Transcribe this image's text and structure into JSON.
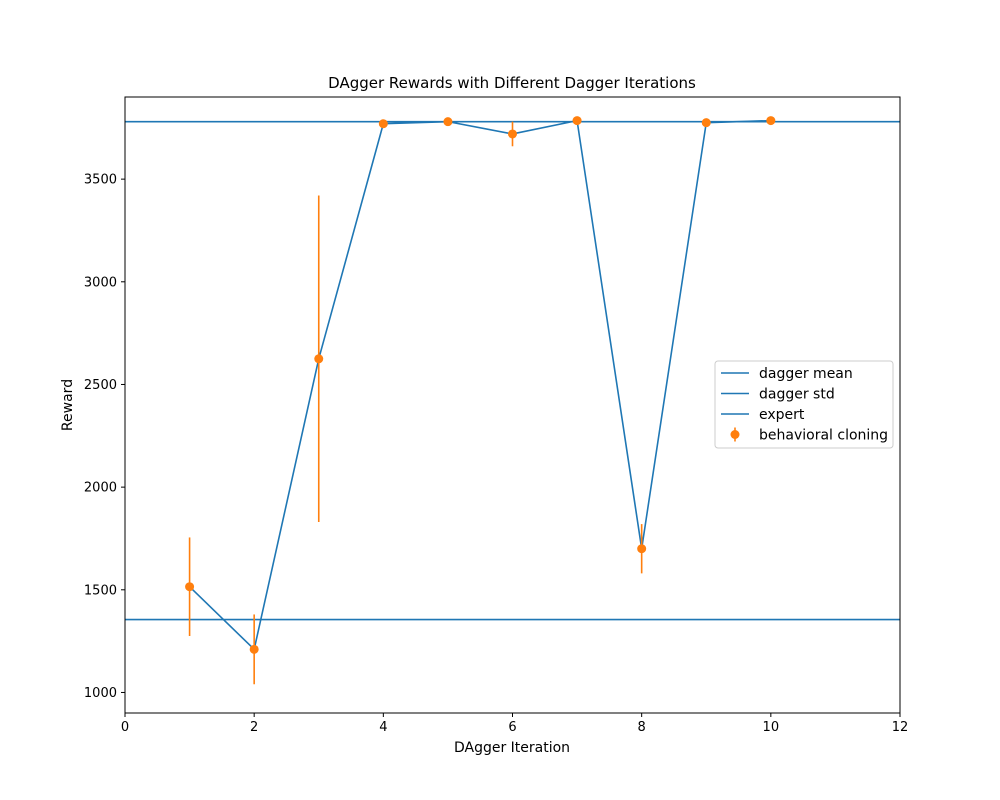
{
  "chart_data": {
    "type": "line",
    "title": "DAgger Rewards with Different Dagger Iterations",
    "xlabel": "DAgger Iteration",
    "ylabel": "Reward",
    "xlim": [
      0,
      12
    ],
    "ylim": [
      900,
      3900
    ],
    "xticks": [
      0,
      2,
      4,
      6,
      8,
      10,
      12
    ],
    "yticks": [
      1000,
      1500,
      2000,
      2500,
      3000,
      3500
    ],
    "grid": false,
    "legend_position": "center-right",
    "series": [
      {
        "name": "dagger mean",
        "kind": "line",
        "color": "#1f77b4",
        "x": [
          1,
          2,
          3,
          4,
          5,
          6,
          7,
          8,
          9,
          10
        ],
        "y": [
          1515,
          1210,
          2625,
          3770,
          3780,
          3720,
          3785,
          1700,
          3775,
          3785
        ]
      },
      {
        "name": "dagger std",
        "kind": "hline",
        "color": "#1f77b4",
        "y": 1355
      },
      {
        "name": "expert",
        "kind": "hline",
        "color": "#1f77b4",
        "y": 3780
      },
      {
        "name": "behavioral cloning",
        "kind": "errorbar",
        "color": "#ff7f0e",
        "x": [
          1,
          2,
          3,
          4,
          5,
          6,
          7,
          8,
          9,
          10
        ],
        "y": [
          1515,
          1210,
          2625,
          3770,
          3780,
          3720,
          3785,
          1700,
          3775,
          3785
        ],
        "err": [
          240,
          170,
          795,
          10,
          8,
          60,
          8,
          120,
          8,
          8
        ]
      }
    ]
  }
}
